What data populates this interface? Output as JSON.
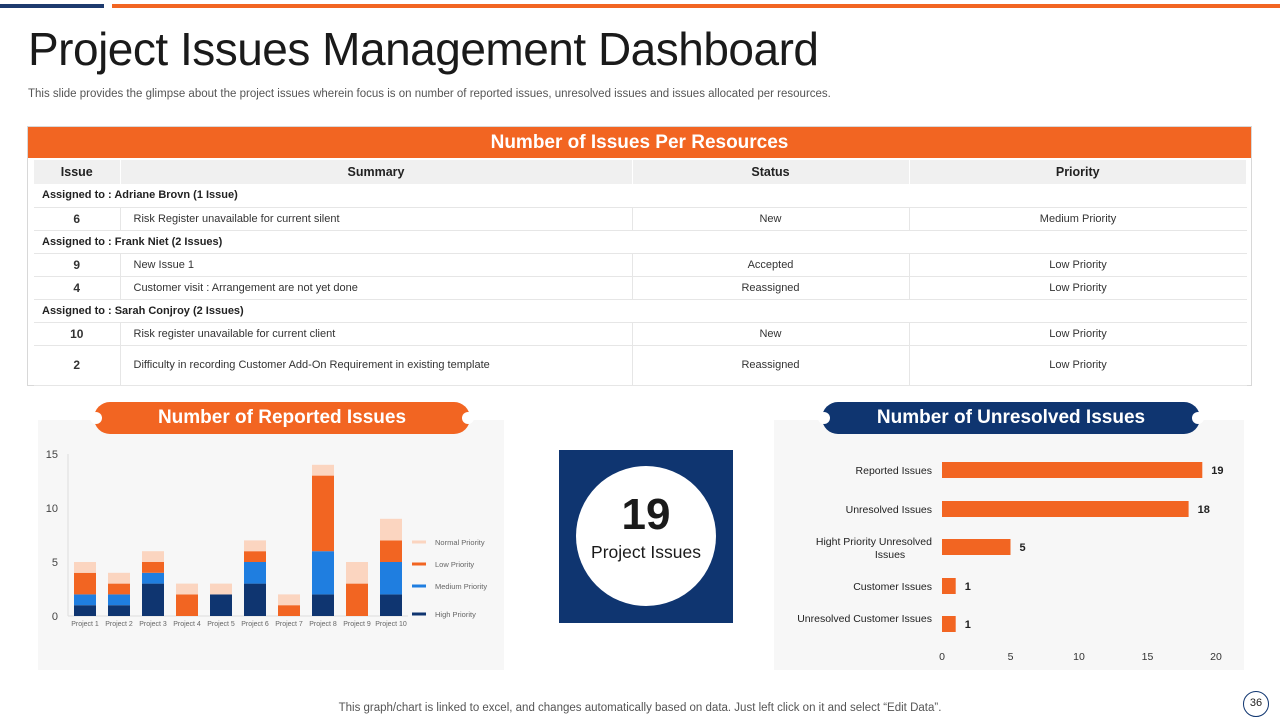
{
  "header": {
    "title": "Project Issues Management Dashboard",
    "subtitle": "This slide provides the glimpse about the project issues wherein focus is on number of reported issues, unresolved issues and issues allocated per resources."
  },
  "issues_table": {
    "title": "Number of Issues Per Resources",
    "columns": [
      "Issue",
      "Summary",
      "Status",
      "Priority"
    ],
    "groups": [
      {
        "label": "Assigned to : Adriane Brovn (1 Issue)",
        "rows": [
          {
            "issue": "6",
            "summary": "Risk Register unavailable  for current silent",
            "status": "New",
            "priority": "Medium Priority"
          }
        ]
      },
      {
        "label": "Assigned to : Frank Niet (2 Issues)",
        "rows": [
          {
            "issue": "9",
            "summary": "New Issue 1",
            "status": "Accepted",
            "priority": "Low Priority"
          },
          {
            "issue": "4",
            "summary": "Customer visit : Arrangement are not yet done",
            "status": "Reassigned",
            "priority": "Low Priority"
          }
        ]
      },
      {
        "label": "Assigned to : Sarah Conjroy (2 Issues)",
        "rows": [
          {
            "issue": "10",
            "summary": "Risk register unavailable  for current client",
            "status": "New",
            "priority": "Low Priority"
          },
          {
            "issue": "2",
            "summary": "Difficulty in recording Customer Add-On Requirement  in existing template",
            "status": "Reassigned",
            "priority": "Low Priority"
          }
        ]
      }
    ]
  },
  "kpi": {
    "value": "19",
    "label": "Project Issues"
  },
  "footer": {
    "note": "This graph/chart is linked to excel,  and changes automatically based on data. Just left click on it and select “Edit Data”.",
    "page_number": "36"
  },
  "colors": {
    "orange": "#f26522",
    "navy": "#0f3570",
    "normal_priority": "#fbd5c0",
    "low_priority": "#f26522",
    "medium_priority": "#1f7ee0",
    "high_priority": "#0f3570"
  },
  "chart_data": [
    {
      "type": "bar",
      "stacked": true,
      "title": "Number of Reported Issues",
      "categories": [
        "Project 1",
        "Project 2",
        "Project 3",
        "Project 4",
        "Project 5",
        "Project 6",
        "Project 7",
        "Project 8",
        "Project 9",
        "Project 10"
      ],
      "series": [
        {
          "name": "High Priority",
          "values": [
            1,
            1,
            3,
            0,
            2,
            3,
            0,
            2,
            0,
            2
          ]
        },
        {
          "name": "Medium Priority",
          "values": [
            1,
            1,
            1,
            0,
            0,
            2,
            0,
            4,
            0,
            3
          ]
        },
        {
          "name": "Low Priority",
          "values": [
            2,
            1,
            1,
            2,
            0,
            1,
            1,
            7,
            3,
            2
          ]
        },
        {
          "name": "Normal Priority",
          "values": [
            1,
            1,
            1,
            1,
            1,
            1,
            1,
            1,
            2,
            2
          ]
        }
      ],
      "legend_order": [
        "Normal Priority",
        "Low Priority",
        "Medium Priority",
        "High Priority"
      ],
      "yticks": [
        0,
        5,
        10,
        15
      ],
      "ylim": [
        0,
        15
      ],
      "legend_position": "right",
      "grid": false
    },
    {
      "type": "bar",
      "orientation": "horizontal",
      "title": "Number of Unresolved Issues",
      "categories": [
        "Reported Issues",
        "Unresolved Issues",
        "Hight Priority Unresolved Issues",
        "Customer Issues",
        "Unresolved Customer Issues"
      ],
      "values": [
        19,
        18,
        5,
        1,
        1
      ],
      "xticks": [
        0,
        5,
        10,
        15,
        20
      ],
      "xlim": [
        0,
        20
      ],
      "grid": false,
      "data_labels": true
    }
  ]
}
